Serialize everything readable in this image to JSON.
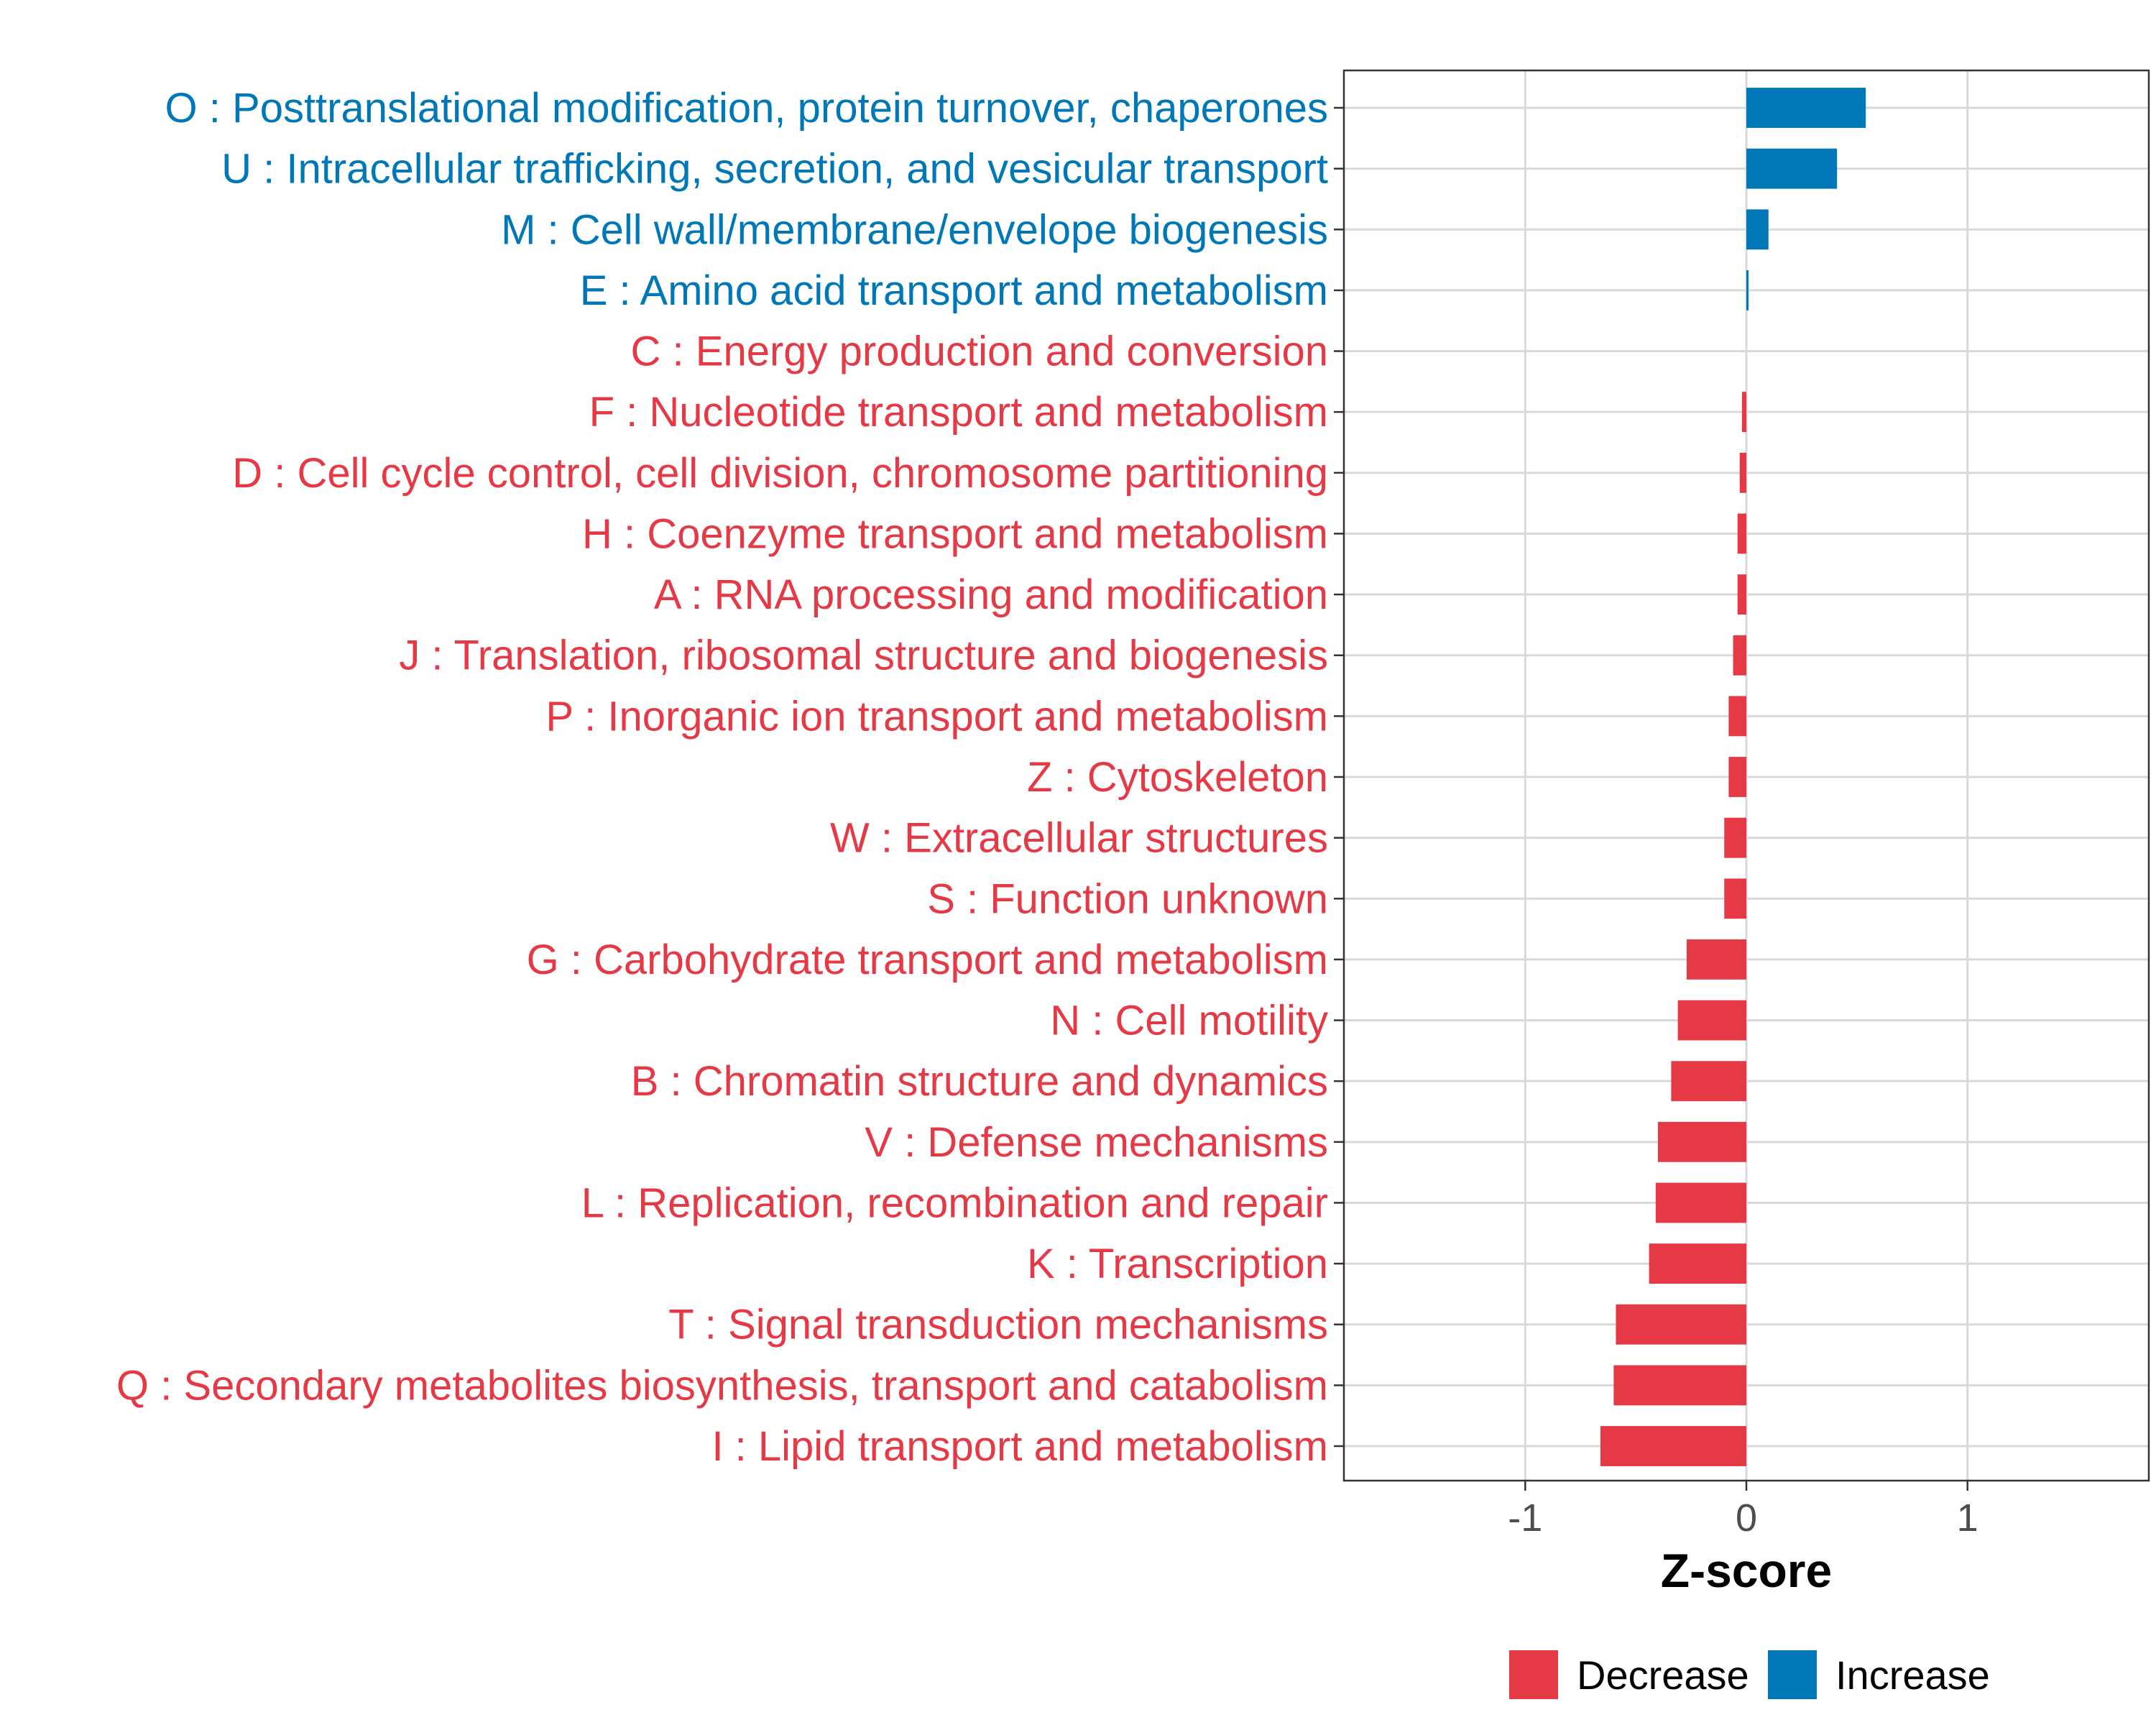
{
  "chart_data": {
    "type": "bar",
    "orientation": "horizontal",
    "xlabel": "Z-score",
    "ylabel": "",
    "xlim": [
      -1.82,
      1.82
    ],
    "xticks": [
      {
        "value": -1,
        "label": "-1"
      },
      {
        "value": 0,
        "label": "0"
      },
      {
        "value": 1,
        "label": "1"
      }
    ],
    "grid": true,
    "colors": {
      "Decrease": "#e63946",
      "Increase": "#0077b6"
    },
    "categories": [
      {
        "label": "O : Posttranslational modification, protein turnover, chaperones",
        "value": 0.54,
        "group": "Increase"
      },
      {
        "label": "U : Intracellular trafficking, secretion, and vesicular transport",
        "value": 0.41,
        "group": "Increase"
      },
      {
        "label": "M : Cell wall/membrane/envelope biogenesis",
        "value": 0.1,
        "group": "Increase"
      },
      {
        "label": "E : Amino acid transport and metabolism",
        "value": 0.01,
        "group": "Increase"
      },
      {
        "label": "C : Energy production and conversion",
        "value": 0.0,
        "group": "Decrease"
      },
      {
        "label": "F : Nucleotide transport and metabolism",
        "value": -0.02,
        "group": "Decrease"
      },
      {
        "label": "D : Cell cycle control, cell division, chromosome partitioning",
        "value": -0.03,
        "group": "Decrease"
      },
      {
        "label": "H : Coenzyme transport and metabolism",
        "value": -0.04,
        "group": "Decrease"
      },
      {
        "label": "A : RNA processing and modification",
        "value": -0.04,
        "group": "Decrease"
      },
      {
        "label": "J : Translation, ribosomal structure and biogenesis",
        "value": -0.06,
        "group": "Decrease"
      },
      {
        "label": "P : Inorganic ion transport and metabolism",
        "value": -0.08,
        "group": "Decrease"
      },
      {
        "label": "Z : Cytoskeleton",
        "value": -0.08,
        "group": "Decrease"
      },
      {
        "label": "W : Extracellular structures",
        "value": -0.1,
        "group": "Decrease"
      },
      {
        "label": "S : Function unknown",
        "value": -0.1,
        "group": "Decrease"
      },
      {
        "label": "G : Carbohydrate transport and metabolism",
        "value": -0.27,
        "group": "Decrease"
      },
      {
        "label": "N : Cell motility",
        "value": -0.31,
        "group": "Decrease"
      },
      {
        "label": "B : Chromatin structure and dynamics",
        "value": -0.34,
        "group": "Decrease"
      },
      {
        "label": "V : Defense mechanisms",
        "value": -0.4,
        "group": "Decrease"
      },
      {
        "label": "L : Replication, recombination and repair",
        "value": -0.41,
        "group": "Decrease"
      },
      {
        "label": "K : Transcription",
        "value": -0.44,
        "group": "Decrease"
      },
      {
        "label": "T : Signal transduction mechanisms",
        "value": -0.59,
        "group": "Decrease"
      },
      {
        "label": "Q : Secondary metabolites biosynthesis, transport and catabolism",
        "value": -0.6,
        "group": "Decrease"
      },
      {
        "label": "I : Lipid transport and metabolism",
        "value": -0.66,
        "group": "Decrease"
      }
    ],
    "legend": {
      "position": "bottom",
      "entries": [
        {
          "label": "Decrease",
          "color": "#e63946"
        },
        {
          "label": "Increase",
          "color": "#0077b6"
        }
      ]
    }
  }
}
